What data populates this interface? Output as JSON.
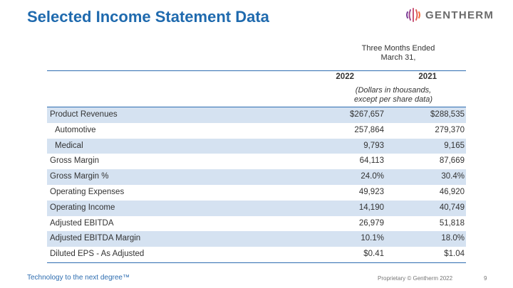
{
  "slide": {
    "title": "Selected Income Statement Data",
    "logo_text": "GENTHERM",
    "period_line1": "Three Months Ended",
    "period_line2": "March 31,",
    "col1_year": "2022",
    "col2_year": "2021",
    "units_line1": "(Dollars in thousands,",
    "units_line2": "except per share data)",
    "tagline": "Technology to the next degree™",
    "footer": "Proprietary © Gentherm 2022",
    "page_number": "9"
  },
  "table": {
    "rows": [
      {
        "label": "Product Revenues",
        "v2022": "$267,657",
        "v2021": "$288,535"
      },
      {
        "label": "Automotive",
        "v2022": "257,864",
        "v2021": "279,370"
      },
      {
        "label": "Medical",
        "v2022": "9,793",
        "v2021": "9,165"
      },
      {
        "label": "Gross Margin",
        "v2022": "64,113",
        "v2021": "87,669"
      },
      {
        "label": "Gross Margin %",
        "v2022": "24.0%",
        "v2021": "30.4%"
      },
      {
        "label": "Operating Expenses",
        "v2022": "49,923",
        "v2021": "46,920"
      },
      {
        "label": "Operating Income",
        "v2022": "14,190",
        "v2021": "40,749"
      },
      {
        "label": "Adjusted EBITDA",
        "v2022": "26,979",
        "v2021": "51,818"
      },
      {
        "label": "Adjusted EBITDA Margin",
        "v2022": "10.1%",
        "v2021": "18.0%"
      },
      {
        "label": "Diluted EPS - As Adjusted",
        "v2022": "$0.41",
        "v2021": "$1.04"
      }
    ]
  },
  "colors": {
    "accent": "#1f6aae",
    "row_shade": "#d5e2f1",
    "logo_purple": "#7b3f98",
    "logo_orange": "#f26b3a"
  },
  "icons": {
    "logo": "gentherm-logo-icon"
  }
}
